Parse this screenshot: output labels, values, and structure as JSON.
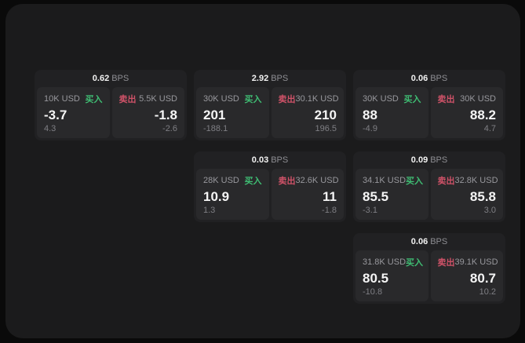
{
  "labels": {
    "bps_unit": "BPS",
    "buy": "买入",
    "sell": "卖出"
  },
  "colors": {
    "background": "#0a0a0a",
    "window": "#1b1b1c",
    "card": "#212123",
    "panel": "#29292b",
    "buy_accent": "#3fbd73",
    "sell_accent": "#cf5268",
    "text_primary": "#f5f5f5",
    "text_muted": "#8e8e93"
  },
  "cards": [
    {
      "bps": "0.62",
      "buy": {
        "amount": "10K USD",
        "price": "-3.7",
        "delta": "4.3"
      },
      "sell": {
        "amount": "5.5K USD",
        "price": "-1.8",
        "delta": "-2.6"
      }
    },
    {
      "bps": "2.92",
      "buy": {
        "amount": "30K USD",
        "price": "201",
        "delta": "-188.1"
      },
      "sell": {
        "amount": "30.1K USD",
        "price": "210",
        "delta": "196.5"
      }
    },
    {
      "bps": "0.06",
      "buy": {
        "amount": "30K USD",
        "price": "88",
        "delta": "-4.9"
      },
      "sell": {
        "amount": "30K USD",
        "price": "88.2",
        "delta": "4.7"
      }
    },
    {
      "bps": "0.03",
      "buy": {
        "amount": "28K USD",
        "price": "10.9",
        "delta": "1.3"
      },
      "sell": {
        "amount": "32.6K USD",
        "price": "11",
        "delta": "-1.8"
      }
    },
    {
      "bps": "0.09",
      "buy": {
        "amount": "34.1K USD",
        "price": "85.5",
        "delta": "-3.1"
      },
      "sell": {
        "amount": "32.8K USD",
        "price": "85.8",
        "delta": "3.0"
      }
    },
    {
      "bps": "0.06",
      "buy": {
        "amount": "31.8K USD",
        "price": "80.5",
        "delta": "-10.8"
      },
      "sell": {
        "amount": "39.1K USD",
        "price": "80.7",
        "delta": "10.2"
      }
    }
  ]
}
